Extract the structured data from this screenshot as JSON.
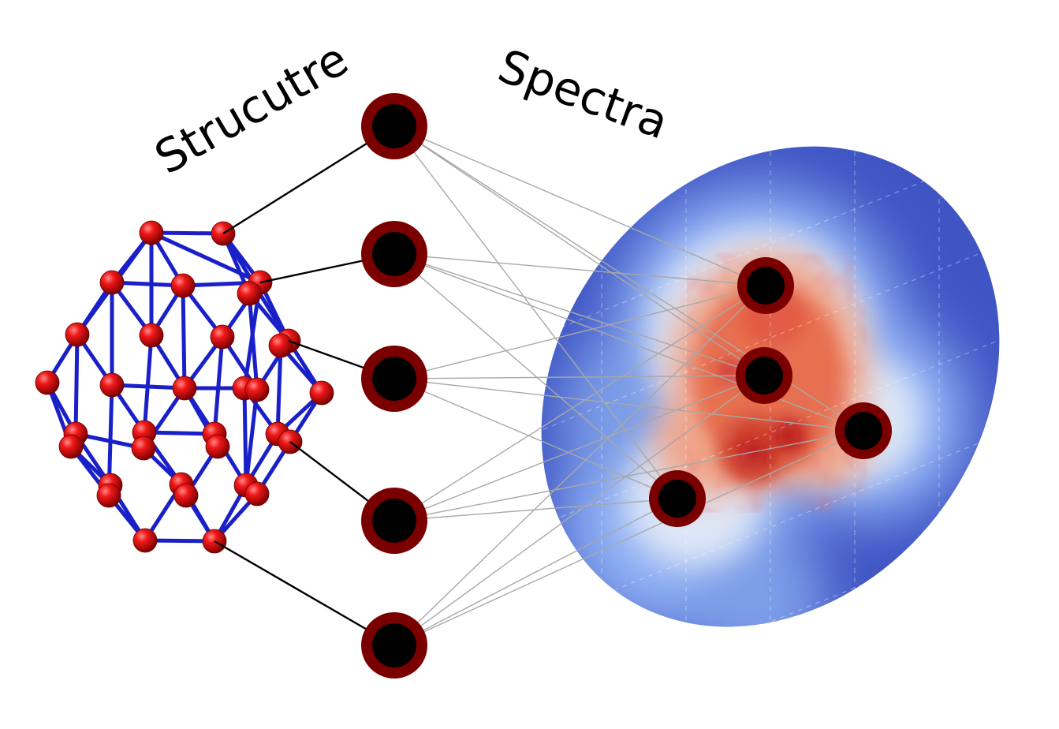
{
  "labels": {
    "structure": "Strucutre",
    "spectra": "Spectra"
  },
  "colors": {
    "background": "#ffffff",
    "atom": "#e01010",
    "atom_dark": "#8a0000",
    "bond": "#1a20c8",
    "node_fill": "#000000",
    "node_ring": "#7a0000",
    "link_black": "#000000",
    "link_gray": "#a8a8a8",
    "heatmap_base": "#3f55c4",
    "heatmap_mid": "#8fb0f4",
    "heatmap_light": "#dde6f7",
    "heatmap_hot": "#e7704f",
    "heatmap_core": "#b30b1d"
  },
  "icons": {
    "structure": "molecular-cluster-icon",
    "node": "network-node-icon",
    "spectrum": "spectral-heatmap-icon"
  }
}
